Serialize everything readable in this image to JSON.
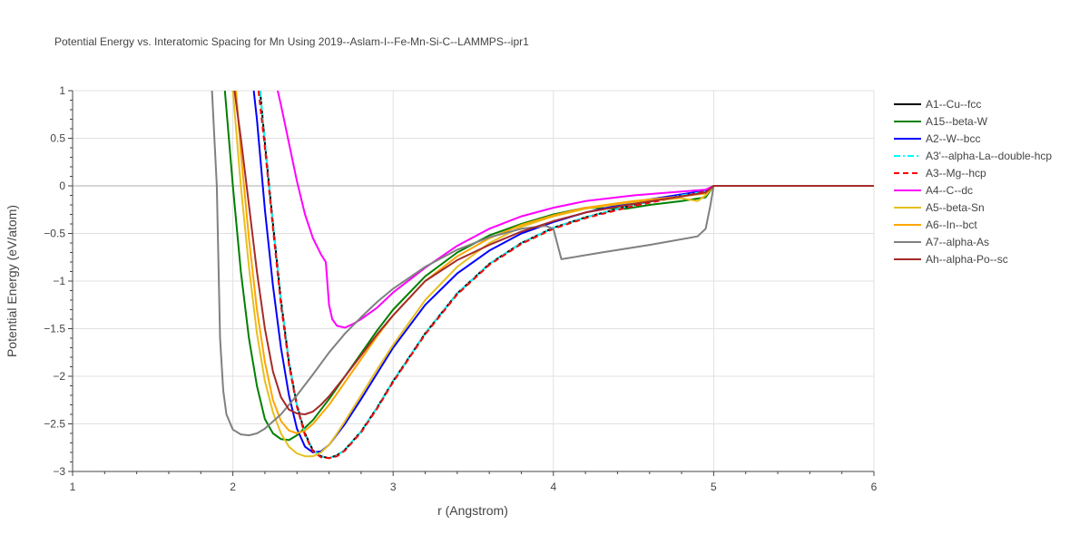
{
  "chart_data": {
    "type": "line",
    "title": "Potential Energy vs. Interatomic Spacing for Mn Using 2019--Aslam-I--Fe-Mn-Si-C--LAMMPS--ipr1",
    "xlabel": "r (Angstrom)",
    "ylabel": "Potential Energy (eV/atom)",
    "xlim": [
      1,
      6
    ],
    "ylim": [
      -3,
      1
    ],
    "xticks": [
      "1",
      "2",
      "3",
      "4",
      "5",
      "6"
    ],
    "yticks": [
      "1",
      "0.5",
      "0",
      "−0.5",
      "−1",
      "−1.5",
      "−2",
      "−2.5",
      "−3"
    ],
    "grid": true,
    "legend_position": "right",
    "series": [
      {
        "name": "A1--Cu--fcc",
        "color": "#000000",
        "dash": "solid",
        "x": [
          2.17,
          2.2,
          2.25,
          2.3,
          2.35,
          2.4,
          2.45,
          2.5,
          2.55,
          2.6,
          2.65,
          2.7,
          2.8,
          2.9,
          3.0,
          3.2,
          3.4,
          3.6,
          3.8,
          4.0,
          4.2,
          4.5,
          4.8,
          4.95,
          5.0,
          6.0
        ],
        "y": [
          1.0,
          0.45,
          -0.4,
          -1.2,
          -1.85,
          -2.3,
          -2.6,
          -2.78,
          -2.84,
          -2.86,
          -2.83,
          -2.77,
          -2.58,
          -2.33,
          -2.05,
          -1.55,
          -1.13,
          -0.82,
          -0.6,
          -0.44,
          -0.33,
          -0.2,
          -0.1,
          -0.06,
          0.0,
          0.0
        ]
      },
      {
        "name": "A15--beta-W",
        "color": "#008000",
        "dash": "solid",
        "x": [
          1.95,
          2.0,
          2.05,
          2.1,
          2.15,
          2.2,
          2.25,
          2.3,
          2.35,
          2.4,
          2.5,
          2.6,
          2.7,
          2.8,
          2.9,
          3.0,
          3.2,
          3.4,
          3.6,
          3.8,
          4.0,
          4.2,
          4.45,
          4.6,
          4.8,
          4.95,
          5.0,
          6.0
        ],
        "y": [
          1.0,
          0.0,
          -0.9,
          -1.6,
          -2.1,
          -2.45,
          -2.6,
          -2.66,
          -2.67,
          -2.62,
          -2.46,
          -2.24,
          -2.0,
          -1.76,
          -1.52,
          -1.3,
          -0.95,
          -0.7,
          -0.52,
          -0.4,
          -0.3,
          -0.23,
          -0.24,
          -0.2,
          -0.16,
          -0.12,
          0.0,
          0.0
        ]
      },
      {
        "name": "A2--W--bcc",
        "color": "#0000ff",
        "dash": "solid",
        "x": [
          2.13,
          2.15,
          2.2,
          2.25,
          2.3,
          2.35,
          2.4,
          2.45,
          2.5,
          2.55,
          2.6,
          2.7,
          2.8,
          2.9,
          3.0,
          3.2,
          3.4,
          3.6,
          3.8,
          4.0,
          4.2,
          4.5,
          4.8,
          4.95,
          5.0,
          6.0
        ],
        "y": [
          1.0,
          0.7,
          -0.25,
          -1.05,
          -1.7,
          -2.2,
          -2.55,
          -2.74,
          -2.8,
          -2.79,
          -2.72,
          -2.5,
          -2.24,
          -1.97,
          -1.7,
          -1.25,
          -0.92,
          -0.68,
          -0.5,
          -0.38,
          -0.28,
          -0.17,
          -0.09,
          -0.05,
          0.0,
          0.0
        ]
      },
      {
        "name": "A3'--alpha-La--double-hcp",
        "color": "#00ffff",
        "dash": "dashdot",
        "x": [
          2.17,
          2.2,
          2.25,
          2.3,
          2.35,
          2.4,
          2.45,
          2.5,
          2.55,
          2.6,
          2.65,
          2.7,
          2.8,
          2.9,
          3.0,
          3.2,
          3.4,
          3.6,
          3.8,
          4.0,
          4.2,
          4.5,
          4.8,
          4.95,
          5.0,
          6.0
        ],
        "y": [
          1.0,
          0.45,
          -0.4,
          -1.2,
          -1.85,
          -2.3,
          -2.6,
          -2.78,
          -2.84,
          -2.86,
          -2.83,
          -2.77,
          -2.58,
          -2.33,
          -2.05,
          -1.55,
          -1.13,
          -0.82,
          -0.6,
          -0.44,
          -0.33,
          -0.2,
          -0.1,
          -0.06,
          0.0,
          0.0
        ]
      },
      {
        "name": "A3--Mg--hcp",
        "color": "#ff0000",
        "dash": "dash",
        "x": [
          2.16,
          2.2,
          2.25,
          2.3,
          2.35,
          2.4,
          2.45,
          2.5,
          2.55,
          2.6,
          2.65,
          2.7,
          2.8,
          2.9,
          3.0,
          3.2,
          3.4,
          3.6,
          3.8,
          4.0,
          4.2,
          4.5,
          4.8,
          4.95,
          5.0,
          6.0
        ],
        "y": [
          1.0,
          0.4,
          -0.45,
          -1.25,
          -1.88,
          -2.32,
          -2.62,
          -2.79,
          -2.85,
          -2.86,
          -2.84,
          -2.78,
          -2.59,
          -2.34,
          -2.06,
          -1.56,
          -1.14,
          -0.83,
          -0.61,
          -0.45,
          -0.34,
          -0.21,
          -0.11,
          -0.06,
          0.0,
          0.0
        ]
      },
      {
        "name": "A4--C--dc",
        "color": "#ff00ff",
        "dash": "solid",
        "x": [
          2.28,
          2.3,
          2.35,
          2.4,
          2.45,
          2.5,
          2.55,
          2.58,
          2.6,
          2.62,
          2.65,
          2.7,
          2.75,
          2.8,
          2.9,
          3.0,
          3.2,
          3.4,
          3.6,
          3.8,
          4.0,
          4.2,
          4.5,
          4.8,
          4.95,
          5.0,
          6.0
        ],
        "y": [
          1.0,
          0.85,
          0.45,
          0.05,
          -0.3,
          -0.55,
          -0.72,
          -0.8,
          -1.25,
          -1.4,
          -1.47,
          -1.49,
          -1.45,
          -1.4,
          -1.28,
          -1.12,
          -0.86,
          -0.63,
          -0.45,
          -0.32,
          -0.23,
          -0.16,
          -0.1,
          -0.06,
          -0.04,
          0.0,
          0.0
        ]
      },
      {
        "name": "A5--beta-Sn",
        "color": "#e6c020",
        "dash": "solid",
        "x": [
          2.0,
          2.05,
          2.1,
          2.15,
          2.2,
          2.25,
          2.3,
          2.35,
          2.4,
          2.45,
          2.5,
          2.55,
          2.6,
          2.65,
          2.7,
          2.8,
          2.9,
          3.0,
          3.2,
          3.4,
          3.6,
          3.8,
          4.0,
          4.2,
          4.5,
          4.8,
          4.9,
          4.95,
          5.0,
          6.0
        ],
        "y": [
          1.0,
          0.0,
          -0.85,
          -1.55,
          -2.05,
          -2.38,
          -2.6,
          -2.74,
          -2.81,
          -2.84,
          -2.84,
          -2.8,
          -2.72,
          -2.6,
          -2.47,
          -2.2,
          -1.93,
          -1.67,
          -1.2,
          -0.85,
          -0.6,
          -0.43,
          -0.32,
          -0.24,
          -0.17,
          -0.13,
          -0.16,
          -0.1,
          0.0,
          0.0
        ]
      },
      {
        "name": "A6--In--bct",
        "color": "#ffa500",
        "dash": "solid",
        "x": [
          2.02,
          2.05,
          2.1,
          2.15,
          2.2,
          2.25,
          2.3,
          2.35,
          2.4,
          2.45,
          2.5,
          2.6,
          2.7,
          2.8,
          2.9,
          3.0,
          3.2,
          3.4,
          3.6,
          3.8,
          4.0,
          4.2,
          4.5,
          4.8,
          4.95,
          5.0,
          6.0
        ],
        "y": [
          1.0,
          0.35,
          -0.55,
          -1.3,
          -1.85,
          -2.25,
          -2.47,
          -2.57,
          -2.6,
          -2.57,
          -2.5,
          -2.3,
          -2.06,
          -1.82,
          -1.58,
          -1.36,
          -1.0,
          -0.74,
          -0.55,
          -0.41,
          -0.31,
          -0.23,
          -0.16,
          -0.11,
          -0.08,
          0.0,
          0.0
        ]
      },
      {
        "name": "A7--alpha-As",
        "color": "#808080",
        "dash": "solid",
        "x": [
          1.87,
          1.9,
          1.92,
          1.94,
          1.96,
          2.0,
          2.05,
          2.1,
          2.15,
          2.2,
          2.3,
          2.4,
          2.5,
          2.6,
          2.7,
          2.8,
          2.9,
          3.0,
          3.2,
          3.4,
          3.6,
          3.8,
          3.95,
          4.0,
          4.05,
          4.3,
          4.6,
          4.9,
          4.95,
          4.98,
          5.0,
          6.0
        ],
        "y": [
          1.0,
          0.0,
          -1.6,
          -2.15,
          -2.4,
          -2.56,
          -2.61,
          -2.62,
          -2.6,
          -2.55,
          -2.4,
          -2.2,
          -1.98,
          -1.75,
          -1.55,
          -1.38,
          -1.22,
          -1.08,
          -0.85,
          -0.67,
          -0.54,
          -0.45,
          -0.42,
          -0.45,
          -0.77,
          -0.7,
          -0.62,
          -0.53,
          -0.45,
          -0.2,
          0.0,
          0.0
        ]
      },
      {
        "name": "Ah--alpha-Po--sc",
        "color": "#a52a2a",
        "dash": "solid",
        "x": [
          2.01,
          2.05,
          2.1,
          2.15,
          2.2,
          2.25,
          2.3,
          2.35,
          2.4,
          2.45,
          2.5,
          2.55,
          2.6,
          2.7,
          2.8,
          2.9,
          3.0,
          3.2,
          3.4,
          3.5,
          3.6,
          3.8,
          4.0,
          4.2,
          4.5,
          4.8,
          4.95,
          5.0,
          6.0
        ],
        "y": [
          1.0,
          0.5,
          -0.2,
          -0.9,
          -1.5,
          -1.95,
          -2.22,
          -2.35,
          -2.39,
          -2.4,
          -2.37,
          -2.3,
          -2.21,
          -2.0,
          -1.78,
          -1.56,
          -1.36,
          -1.0,
          -0.78,
          -0.7,
          -0.62,
          -0.48,
          -0.37,
          -0.28,
          -0.19,
          -0.11,
          -0.07,
          0.0,
          0.0
        ]
      }
    ]
  }
}
